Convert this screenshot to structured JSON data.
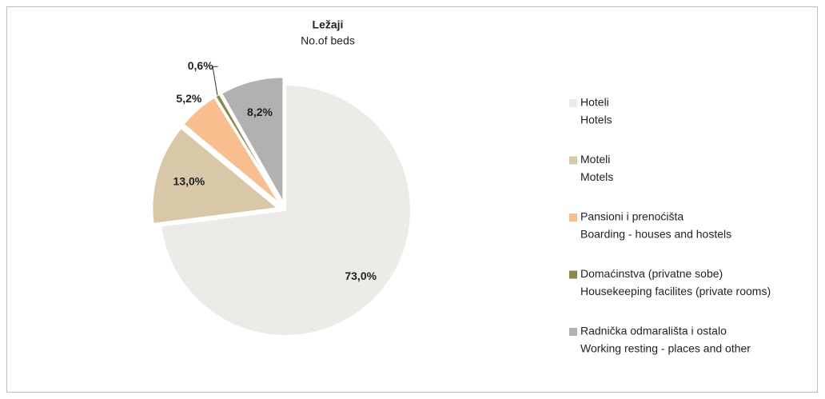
{
  "chart_data": {
    "type": "pie",
    "title": "Ležaji",
    "subtitle": "No.of beds",
    "categories": [
      "Hoteli",
      "Moteli",
      "Pansioni  i  prenoćišta",
      "Domaćinstva (privatne sobe)",
      "Radnička odmarališta i ostalo"
    ],
    "categories_en": [
      "Hotels",
      "Motels",
      "Boarding - houses and hostels",
      "Housekeeping facilites (private rooms)",
      "Working resting - places and other"
    ],
    "values": [
      73.0,
      13.0,
      5.2,
      0.6,
      8.2
    ],
    "value_labels": [
      "73,0%",
      "13,0%",
      "5,2%",
      "0,6%",
      "8,2%"
    ],
    "colors": [
      "#ecebe8",
      "#d8c8a8",
      "#f8be8e",
      "#8a874a",
      "#b1b1b1"
    ],
    "legend": "right"
  }
}
